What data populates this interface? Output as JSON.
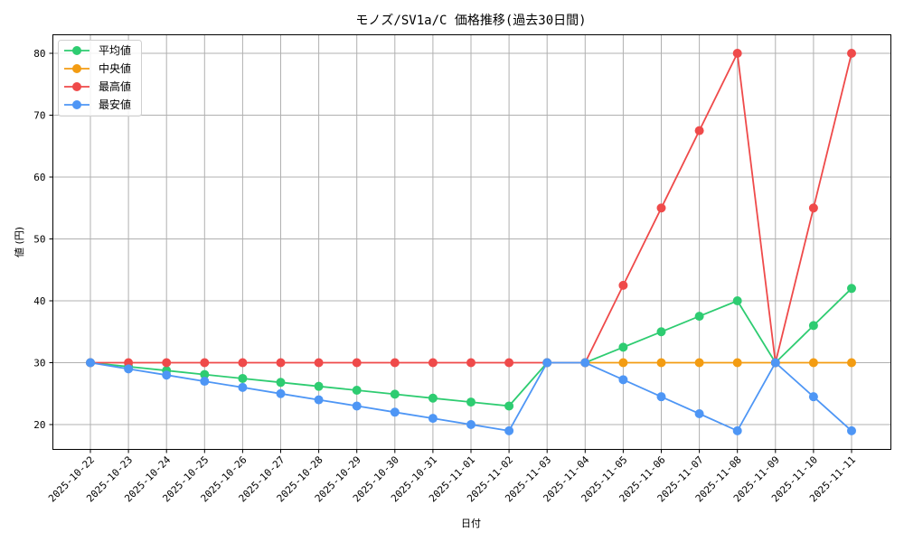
{
  "chart_data": {
    "type": "line",
    "title": "モノズ/SV1a/C 価格推移(過去30日間)",
    "xlabel": "日付",
    "ylabel": "値 (円)",
    "ylim": [
      16,
      83
    ],
    "yticks": [
      20,
      30,
      40,
      50,
      60,
      70,
      80
    ],
    "grid": true,
    "legend_position": "upper left",
    "categories": [
      "2025-10-22",
      "2025-10-23",
      "2025-10-24",
      "2025-10-25",
      "2025-10-26",
      "2025-10-27",
      "2025-10-28",
      "2025-10-29",
      "2025-10-30",
      "2025-10-31",
      "2025-11-01",
      "2025-11-02",
      "2025-11-03",
      "2025-11-04",
      "2025-11-05",
      "2025-11-06",
      "2025-11-07",
      "2025-11-08",
      "2025-11-09",
      "2025-11-10",
      "2025-11-11"
    ],
    "series": [
      {
        "name": "平均値",
        "color": "#2ecc71",
        "values": [
          30,
          29.36,
          28.73,
          28.09,
          27.45,
          26.82,
          26.18,
          25.55,
          24.91,
          24.27,
          23.64,
          23.0,
          30,
          30,
          32.5,
          35,
          37.5,
          40,
          30,
          36,
          42
        ]
      },
      {
        "name": "中央値",
        "color": "#f39c12",
        "values": [
          null,
          null,
          null,
          null,
          null,
          null,
          null,
          null,
          null,
          null,
          null,
          null,
          null,
          30,
          30,
          30,
          30,
          30,
          30,
          30,
          30
        ]
      },
      {
        "name": "最高値",
        "color": "#ef4a4a",
        "values": [
          30,
          30,
          30,
          30,
          30,
          30,
          30,
          30,
          30,
          30,
          30,
          30,
          30,
          30,
          42.5,
          55,
          67.5,
          80,
          30,
          55,
          80
        ]
      },
      {
        "name": "最安値",
        "color": "#4e96f5",
        "values": [
          30,
          29,
          28,
          27,
          26,
          25,
          24,
          23,
          22,
          21,
          20,
          19,
          30,
          30,
          27.25,
          24.5,
          21.75,
          19,
          30,
          24.5,
          19
        ]
      }
    ]
  }
}
